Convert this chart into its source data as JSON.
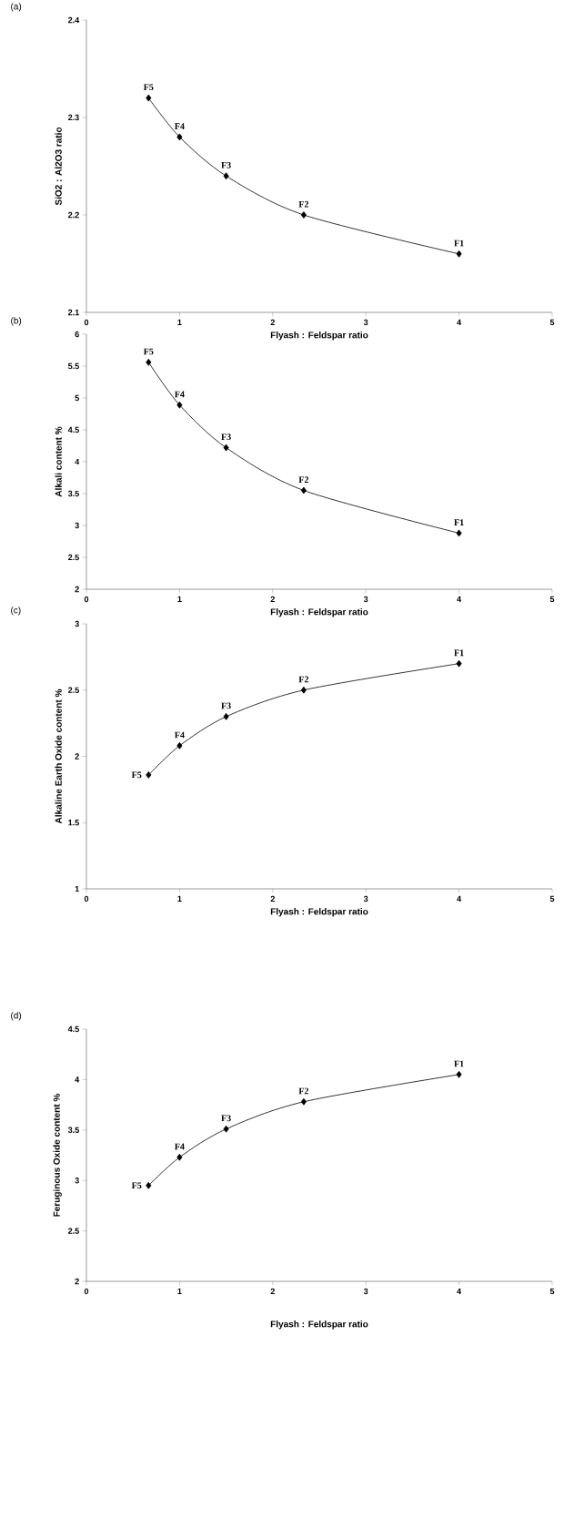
{
  "chart_data": [
    {
      "type": "line",
      "title": "(a)",
      "xlabel": "Flyash : Feldspar ratio",
      "ylabel": "SiO2 : Al2O3 ratio",
      "x": [
        0.667,
        1,
        1.5,
        2.333,
        4
      ],
      "values": [
        2.32,
        2.28,
        2.24,
        2.2,
        2.16
      ],
      "color": "#000000",
      "marker": "diamond",
      "xlim": [
        0,
        5
      ],
      "ylim": [
        2.1,
        2.4
      ],
      "xticks": [
        0,
        1,
        2,
        3,
        4,
        5
      ],
      "yticks": [
        2.1,
        2.2,
        2.3,
        2.4
      ],
      "grid": false,
      "annotations": [
        {
          "text": "F5",
          "x": 0.667,
          "y": 2.32
        },
        {
          "text": "F4",
          "x": 1,
          "y": 2.28
        },
        {
          "text": "F3",
          "x": 1.5,
          "y": 2.24
        },
        {
          "text": "F2",
          "x": 2.333,
          "y": 2.2
        },
        {
          "text": "F1",
          "x": 4,
          "y": 2.16
        }
      ]
    },
    {
      "type": "line",
      "title": "(b)",
      "xlabel": "Flyash : Feldspar ratio",
      "ylabel": "Alkali content %",
      "x": [
        0.667,
        1,
        1.5,
        2.333,
        4
      ],
      "values": [
        5.56,
        4.89,
        4.22,
        3.55,
        2.88
      ],
      "color": "#000000",
      "marker": "diamond",
      "xlim": [
        0,
        5
      ],
      "ylim": [
        2,
        6
      ],
      "xticks": [
        0,
        1,
        2,
        3,
        4,
        5
      ],
      "yticks": [
        2,
        2.5,
        3,
        3.5,
        4,
        4.5,
        5,
        5.5,
        6
      ],
      "grid": false,
      "annotations": [
        {
          "text": "F5",
          "x": 0.667,
          "y": 5.56
        },
        {
          "text": "F4",
          "x": 1,
          "y": 4.89
        },
        {
          "text": "F3",
          "x": 1.5,
          "y": 4.22
        },
        {
          "text": "F2",
          "x": 2.333,
          "y": 3.55
        },
        {
          "text": "F1",
          "x": 4,
          "y": 2.88
        }
      ]
    },
    {
      "type": "line",
      "title": "(c)",
      "xlabel": "Flyash : Feldspar ratio",
      "ylabel": "Alkaline Earth Oxide content %",
      "x": [
        0.667,
        1,
        1.5,
        2.333,
        4
      ],
      "values": [
        1.86,
        2.08,
        2.3,
        2.5,
        2.7
      ],
      "color": "#000000",
      "marker": "diamond",
      "xlim": [
        0,
        5
      ],
      "ylim": [
        1,
        3
      ],
      "xticks": [
        0,
        1,
        2,
        3,
        4,
        5
      ],
      "yticks": [
        1,
        1.5,
        2,
        2.5,
        3
      ],
      "grid": false,
      "annotations": [
        {
          "text": "F5",
          "x": 0.667,
          "y": 1.86
        },
        {
          "text": "F4",
          "x": 1,
          "y": 2.08
        },
        {
          "text": "F3",
          "x": 1.5,
          "y": 2.3
        },
        {
          "text": "F2",
          "x": 2.333,
          "y": 2.5
        },
        {
          "text": "F1",
          "x": 4,
          "y": 2.7
        }
      ]
    },
    {
      "type": "line",
      "title": "(d)",
      "xlabel": "Flyash : Feldspar ratio",
      "ylabel": "Feruginous Oxide content %",
      "x": [
        0.667,
        1,
        1.5,
        2.333,
        4
      ],
      "values": [
        2.95,
        3.23,
        3.51,
        3.78,
        4.05
      ],
      "color": "#000000",
      "marker": "diamond",
      "xlim": [
        0,
        5
      ],
      "ylim": [
        2,
        4.5
      ],
      "xticks": [
        0,
        1,
        2,
        3,
        4,
        5
      ],
      "yticks": [
        2,
        2.5,
        3,
        3.5,
        4,
        4.5
      ],
      "grid": false,
      "annotations": [
        {
          "text": "F5",
          "x": 0.667,
          "y": 2.95
        },
        {
          "text": "F4",
          "x": 1,
          "y": 3.23
        },
        {
          "text": "F3",
          "x": 1.5,
          "y": 3.51
        },
        {
          "text": "F2",
          "x": 2.333,
          "y": 3.78
        },
        {
          "text": "F1",
          "x": 4,
          "y": 4.05
        }
      ]
    }
  ]
}
